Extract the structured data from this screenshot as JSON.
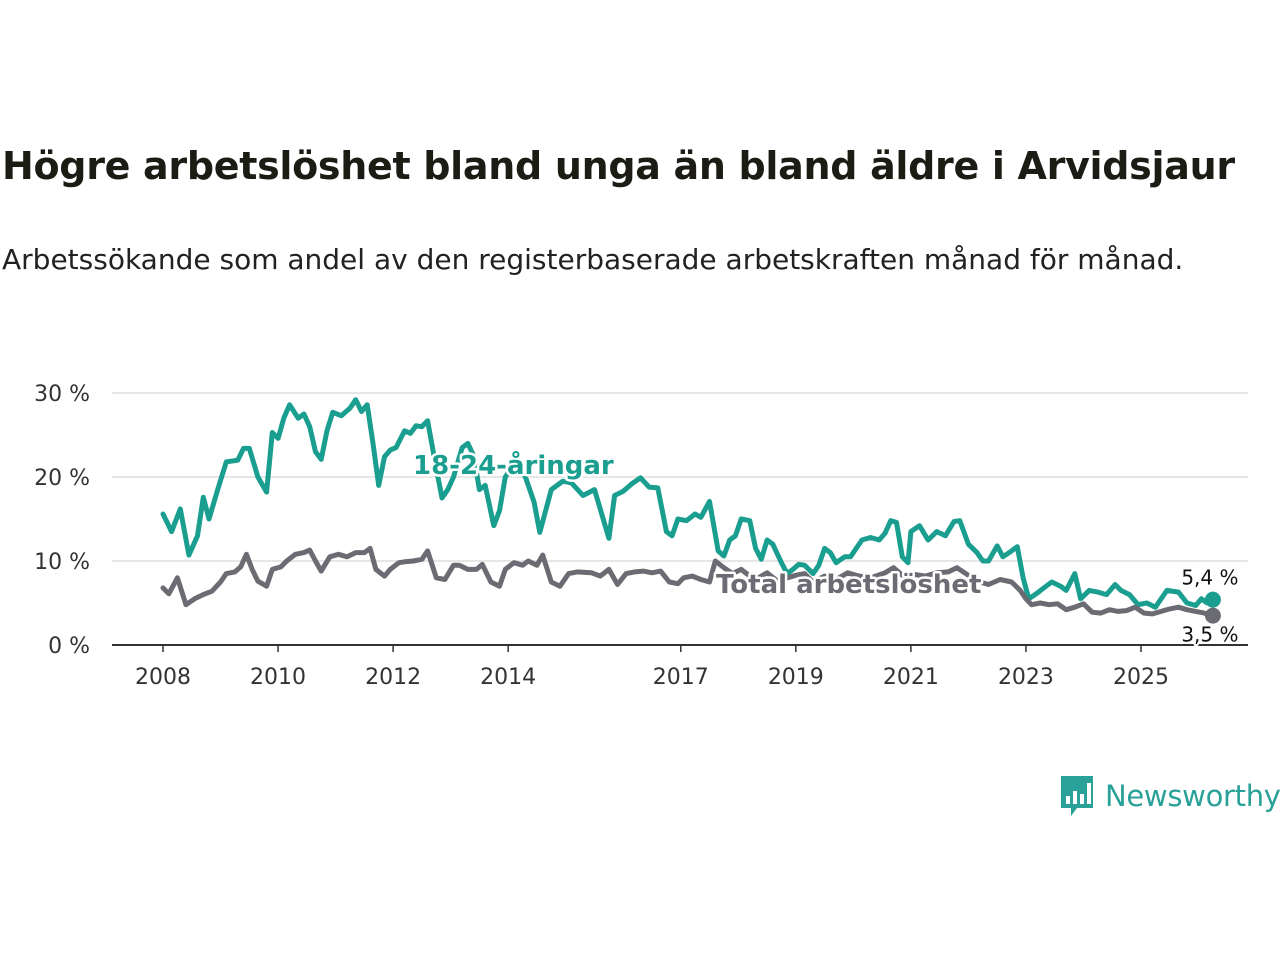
{
  "title": "Högre arbetslöshet bland unga än bland äldre i Arvidsjaur",
  "subtitle": "Arbetssökande som andel av den registerbaserade arbetskraften månad för månad.",
  "brand": "Newsworthy",
  "colors": {
    "youth": "#1a9e8f",
    "total": "#6b6b73",
    "grid": "#dddddd",
    "axis": "#333333",
    "brand": "#2aa198"
  },
  "chart_data": {
    "type": "line",
    "title": "Högre arbetslöshet bland unga än bland äldre i Arvidsjaur",
    "xlabel": "",
    "ylabel": "",
    "ylim": [
      0,
      30
    ],
    "xlim": [
      2007.6,
      2026.8
    ],
    "y_ticks": [
      0,
      10,
      20,
      30
    ],
    "y_tick_labels": [
      "0 %",
      "10 %",
      "20 %",
      "30 %"
    ],
    "x_ticks": [
      2008,
      2010,
      2012,
      2014,
      2017,
      2019,
      2021,
      2023,
      2025
    ],
    "x_tick_labels": [
      "2008",
      "2010",
      "2012",
      "2014",
      "2017",
      "2019",
      "2021",
      "2023",
      "2025"
    ],
    "grid": true,
    "series": [
      {
        "name": "18-24-åringar",
        "label": "18-24-åringar",
        "end_label": "5,4 %",
        "points": [
          [
            2008.0,
            15.6
          ],
          [
            2008.15,
            13.5
          ],
          [
            2008.3,
            16.2
          ],
          [
            2008.45,
            10.7
          ],
          [
            2008.6,
            13.0
          ],
          [
            2008.7,
            17.6
          ],
          [
            2008.8,
            15.0
          ],
          [
            2008.95,
            18.5
          ],
          [
            2009.1,
            21.8
          ],
          [
            2009.3,
            22.0
          ],
          [
            2009.4,
            23.4
          ],
          [
            2009.5,
            23.4
          ],
          [
            2009.65,
            20.0
          ],
          [
            2009.8,
            18.2
          ],
          [
            2009.9,
            25.3
          ],
          [
            2010.0,
            24.6
          ],
          [
            2010.1,
            27.0
          ],
          [
            2010.2,
            28.6
          ],
          [
            2010.35,
            27.0
          ],
          [
            2010.45,
            27.5
          ],
          [
            2010.55,
            26.0
          ],
          [
            2010.65,
            23.0
          ],
          [
            2010.75,
            22.1
          ],
          [
            2010.85,
            25.5
          ],
          [
            2010.95,
            27.7
          ],
          [
            2011.1,
            27.3
          ],
          [
            2011.25,
            28.2
          ],
          [
            2011.35,
            29.2
          ],
          [
            2011.45,
            27.8
          ],
          [
            2011.55,
            28.6
          ],
          [
            2011.65,
            24.0
          ],
          [
            2011.75,
            19.0
          ],
          [
            2011.85,
            22.4
          ],
          [
            2011.95,
            23.2
          ],
          [
            2012.05,
            23.5
          ],
          [
            2012.2,
            25.5
          ],
          [
            2012.3,
            25.2
          ],
          [
            2012.4,
            26.1
          ],
          [
            2012.5,
            26.0
          ],
          [
            2012.6,
            26.7
          ],
          [
            2012.75,
            21.0
          ],
          [
            2012.85,
            17.5
          ],
          [
            2012.95,
            18.5
          ],
          [
            2013.05,
            20.0
          ],
          [
            2013.2,
            23.5
          ],
          [
            2013.3,
            24.0
          ],
          [
            2013.4,
            22.5
          ],
          [
            2013.5,
            18.5
          ],
          [
            2013.6,
            19.0
          ],
          [
            2013.75,
            14.2
          ],
          [
            2013.85,
            16.0
          ],
          [
            2013.95,
            20.0
          ],
          [
            2014.1,
            21.5
          ],
          [
            2014.3,
            20.0
          ],
          [
            2014.45,
            17.0
          ],
          [
            2014.55,
            13.4
          ],
          [
            2014.75,
            18.5
          ],
          [
            2014.95,
            19.5
          ],
          [
            2015.1,
            19.3
          ],
          [
            2015.3,
            17.8
          ],
          [
            2015.5,
            18.5
          ],
          [
            2015.75,
            12.7
          ],
          [
            2015.85,
            17.8
          ],
          [
            2016.0,
            18.3
          ],
          [
            2016.15,
            19.2
          ],
          [
            2016.3,
            19.9
          ],
          [
            2016.45,
            18.8
          ],
          [
            2016.6,
            18.7
          ],
          [
            2016.75,
            13.5
          ],
          [
            2016.85,
            13.0
          ],
          [
            2016.95,
            15.0
          ],
          [
            2017.1,
            14.8
          ],
          [
            2017.25,
            15.6
          ],
          [
            2017.35,
            15.2
          ],
          [
            2017.5,
            17.1
          ],
          [
            2017.65,
            11.2
          ],
          [
            2017.75,
            10.6
          ],
          [
            2017.85,
            12.5
          ],
          [
            2017.95,
            13.0
          ],
          [
            2018.05,
            15.0
          ],
          [
            2018.2,
            14.8
          ],
          [
            2018.3,
            11.5
          ],
          [
            2018.4,
            10.2
          ],
          [
            2018.5,
            12.5
          ],
          [
            2018.6,
            12.0
          ],
          [
            2018.75,
            9.8
          ],
          [
            2018.85,
            8.5
          ],
          [
            2018.95,
            9.0
          ],
          [
            2019.05,
            9.6
          ],
          [
            2019.15,
            9.5
          ],
          [
            2019.3,
            8.5
          ],
          [
            2019.4,
            9.5
          ],
          [
            2019.5,
            11.5
          ],
          [
            2019.6,
            11.0
          ],
          [
            2019.7,
            9.8
          ],
          [
            2019.85,
            10.5
          ],
          [
            2019.95,
            10.5
          ],
          [
            2020.05,
            11.5
          ],
          [
            2020.15,
            12.5
          ],
          [
            2020.3,
            12.8
          ],
          [
            2020.45,
            12.5
          ],
          [
            2020.55,
            13.3
          ],
          [
            2020.65,
            14.8
          ],
          [
            2020.75,
            14.6
          ],
          [
            2020.85,
            10.5
          ],
          [
            2020.95,
            9.8
          ],
          [
            2021.0,
            13.5
          ],
          [
            2021.15,
            14.2
          ],
          [
            2021.3,
            12.5
          ],
          [
            2021.45,
            13.5
          ],
          [
            2021.6,
            13.0
          ],
          [
            2021.75,
            14.7
          ],
          [
            2021.85,
            14.8
          ],
          [
            2022.0,
            12.0
          ],
          [
            2022.15,
            11.0
          ],
          [
            2022.25,
            10.0
          ],
          [
            2022.35,
            10.0
          ],
          [
            2022.5,
            11.8
          ],
          [
            2022.6,
            10.5
          ],
          [
            2022.75,
            11.2
          ],
          [
            2022.85,
            11.7
          ],
          [
            2022.95,
            8.0
          ],
          [
            2023.05,
            5.5
          ],
          [
            2023.2,
            6.2
          ],
          [
            2023.35,
            7.0
          ],
          [
            2023.45,
            7.5
          ],
          [
            2023.6,
            7.0
          ],
          [
            2023.7,
            6.5
          ],
          [
            2023.85,
            8.5
          ],
          [
            2023.95,
            5.5
          ],
          [
            2024.1,
            6.5
          ],
          [
            2024.25,
            6.3
          ],
          [
            2024.4,
            6.0
          ],
          [
            2024.55,
            7.2
          ],
          [
            2024.65,
            6.5
          ],
          [
            2024.8,
            6.0
          ],
          [
            2024.95,
            4.8
          ],
          [
            2025.1,
            5.0
          ],
          [
            2025.25,
            4.5
          ],
          [
            2025.45,
            6.5
          ],
          [
            2025.65,
            6.3
          ],
          [
            2025.8,
            5.0
          ],
          [
            2025.95,
            4.7
          ],
          [
            2026.05,
            5.5
          ],
          [
            2026.15,
            5.0
          ],
          [
            2026.25,
            5.4
          ]
        ]
      },
      {
        "name": "Total arbetslöshet",
        "label": "Total arbetslöshet",
        "end_label": "3,5 %",
        "points": [
          [
            2008.0,
            6.8
          ],
          [
            2008.1,
            6.1
          ],
          [
            2008.25,
            8.0
          ],
          [
            2008.4,
            4.8
          ],
          [
            2008.55,
            5.5
          ],
          [
            2008.7,
            6.0
          ],
          [
            2008.85,
            6.4
          ],
          [
            2009.0,
            7.5
          ],
          [
            2009.1,
            8.5
          ],
          [
            2009.25,
            8.7
          ],
          [
            2009.35,
            9.3
          ],
          [
            2009.45,
            10.8
          ],
          [
            2009.55,
            9.0
          ],
          [
            2009.65,
            7.6
          ],
          [
            2009.8,
            7.0
          ],
          [
            2009.9,
            9.0
          ],
          [
            2010.05,
            9.3
          ],
          [
            2010.15,
            10.0
          ],
          [
            2010.3,
            10.8
          ],
          [
            2010.45,
            11.0
          ],
          [
            2010.55,
            11.3
          ],
          [
            2010.65,
            10.0
          ],
          [
            2010.75,
            8.8
          ],
          [
            2010.9,
            10.5
          ],
          [
            2011.05,
            10.8
          ],
          [
            2011.2,
            10.5
          ],
          [
            2011.35,
            11.0
          ],
          [
            2011.5,
            11.0
          ],
          [
            2011.6,
            11.5
          ],
          [
            2011.7,
            9.0
          ],
          [
            2011.85,
            8.2
          ],
          [
            2011.95,
            9.0
          ],
          [
            2012.1,
            9.8
          ],
          [
            2012.2,
            9.9
          ],
          [
            2012.35,
            10.0
          ],
          [
            2012.5,
            10.2
          ],
          [
            2012.6,
            11.2
          ],
          [
            2012.75,
            8.0
          ],
          [
            2012.9,
            7.8
          ],
          [
            2013.05,
            9.5
          ],
          [
            2013.15,
            9.5
          ],
          [
            2013.3,
            9.0
          ],
          [
            2013.45,
            9.0
          ],
          [
            2013.55,
            9.6
          ],
          [
            2013.7,
            7.5
          ],
          [
            2013.85,
            7.0
          ],
          [
            2013.95,
            9.0
          ],
          [
            2014.1,
            9.8
          ],
          [
            2014.25,
            9.5
          ],
          [
            2014.35,
            10.0
          ],
          [
            2014.5,
            9.5
          ],
          [
            2014.6,
            10.7
          ],
          [
            2014.75,
            7.5
          ],
          [
            2014.9,
            7.0
          ],
          [
            2015.05,
            8.5
          ],
          [
            2015.2,
            8.7
          ],
          [
            2015.45,
            8.6
          ],
          [
            2015.6,
            8.2
          ],
          [
            2015.75,
            9.0
          ],
          [
            2015.9,
            7.2
          ],
          [
            2016.05,
            8.5
          ],
          [
            2016.2,
            8.7
          ],
          [
            2016.35,
            8.8
          ],
          [
            2016.5,
            8.6
          ],
          [
            2016.65,
            8.8
          ],
          [
            2016.8,
            7.5
          ],
          [
            2016.95,
            7.3
          ],
          [
            2017.05,
            8.0
          ],
          [
            2017.2,
            8.2
          ],
          [
            2017.35,
            7.8
          ],
          [
            2017.5,
            7.5
          ],
          [
            2017.6,
            10.0
          ],
          [
            2017.75,
            9.2
          ],
          [
            2017.9,
            8.5
          ],
          [
            2018.05,
            9.0
          ],
          [
            2018.2,
            8.2
          ],
          [
            2018.35,
            8.0
          ],
          [
            2018.5,
            8.6
          ],
          [
            2018.7,
            7.5
          ],
          [
            2018.85,
            8.0
          ],
          [
            2019.0,
            8.3
          ],
          [
            2019.15,
            8.5
          ],
          [
            2019.3,
            7.5
          ],
          [
            2019.5,
            8.2
          ],
          [
            2019.7,
            7.8
          ],
          [
            2019.9,
            8.6
          ],
          [
            2020.1,
            8.2
          ],
          [
            2020.3,
            8.0
          ],
          [
            2020.55,
            8.6
          ],
          [
            2020.7,
            9.2
          ],
          [
            2020.85,
            8.3
          ],
          [
            2021.05,
            8.4
          ],
          [
            2021.25,
            8.2
          ],
          [
            2021.45,
            8.6
          ],
          [
            2021.65,
            8.7
          ],
          [
            2021.8,
            9.2
          ],
          [
            2022.0,
            8.3
          ],
          [
            2022.2,
            7.5
          ],
          [
            2022.35,
            7.2
          ],
          [
            2022.55,
            7.8
          ],
          [
            2022.75,
            7.5
          ],
          [
            2022.9,
            6.5
          ],
          [
            2023.0,
            5.5
          ],
          [
            2023.1,
            4.8
          ],
          [
            2023.25,
            5.0
          ],
          [
            2023.4,
            4.8
          ],
          [
            2023.55,
            4.9
          ],
          [
            2023.7,
            4.2
          ],
          [
            2023.85,
            4.5
          ],
          [
            2024.0,
            4.9
          ],
          [
            2024.15,
            3.9
          ],
          [
            2024.3,
            3.8
          ],
          [
            2024.45,
            4.2
          ],
          [
            2024.6,
            4.0
          ],
          [
            2024.75,
            4.1
          ],
          [
            2024.9,
            4.5
          ],
          [
            2025.05,
            3.8
          ],
          [
            2025.2,
            3.7
          ],
          [
            2025.35,
            4.0
          ],
          [
            2025.5,
            4.3
          ],
          [
            2025.65,
            4.5
          ],
          [
            2025.8,
            4.2
          ],
          [
            2025.95,
            4.0
          ],
          [
            2026.1,
            3.8
          ],
          [
            2026.25,
            3.5
          ]
        ]
      }
    ]
  }
}
